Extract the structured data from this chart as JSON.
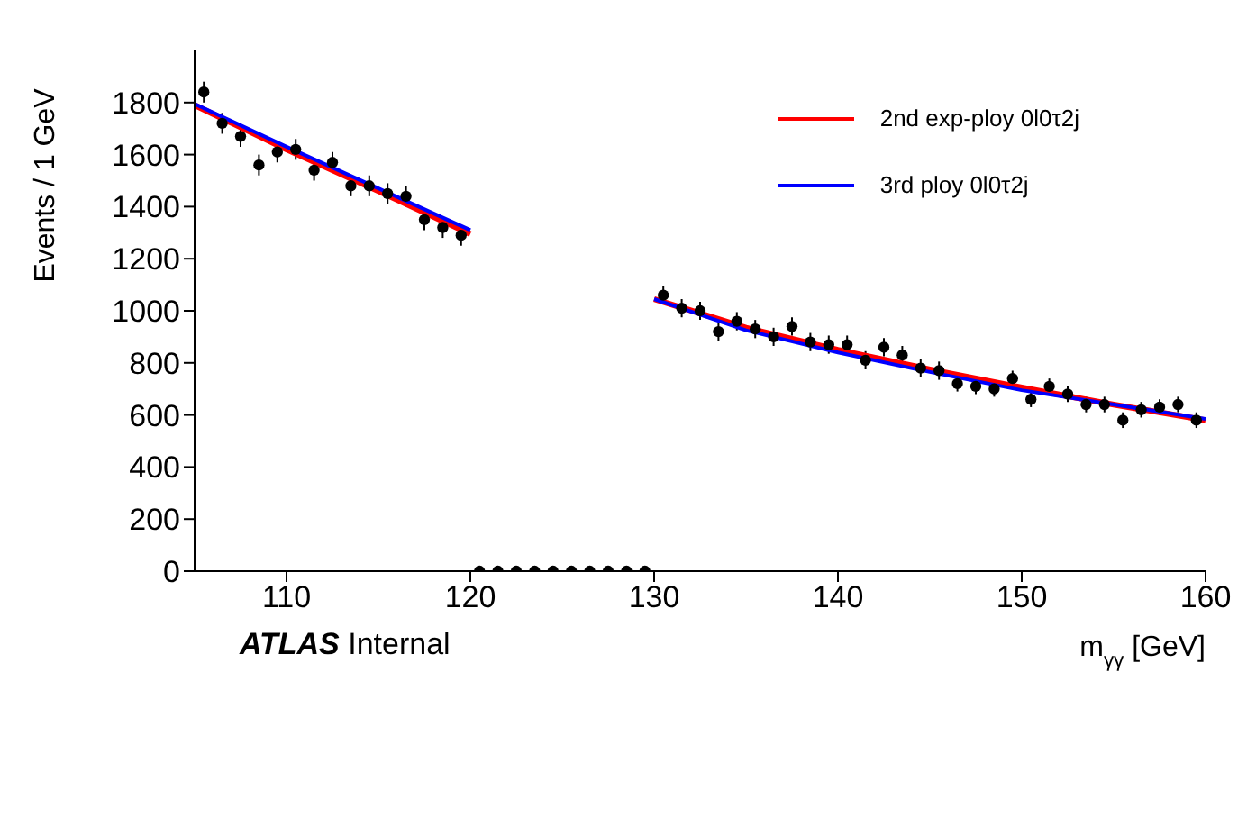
{
  "chart_data": {
    "type": "scatter",
    "xlabel": "m$_{γγ}$ [GeV]",
    "ylabel": "Events / 1 GeV",
    "xlim": [
      105,
      160
    ],
    "xticks": [
      110,
      120,
      130,
      140,
      150,
      160
    ],
    "ylim": [
      0,
      2000
    ],
    "yticks": [
      0,
      200,
      400,
      600,
      800,
      1000,
      1200,
      1400,
      1600,
      1800
    ],
    "grid": false,
    "legend": "top right",
    "annotations": [
      "ATLAS Internal"
    ],
    "series": [
      {
        "color": "#000000",
        "marker": "circle",
        "x": [
          105.5,
          106.5,
          107.5,
          108.5,
          109.5,
          110.5,
          111.5,
          112.5,
          113.5,
          114.5,
          115.5,
          116.5,
          117.5,
          118.5,
          119.5,
          120.5,
          121.5,
          122.5,
          123.5,
          124.5,
          125.5,
          126.5,
          127.5,
          128.5,
          129.5,
          130.5,
          131.5,
          132.5,
          133.5,
          134.5,
          135.5,
          136.5,
          137.5,
          138.5,
          139.5,
          140.5,
          141.5,
          142.5,
          143.5,
          144.5,
          145.5,
          146.5,
          147.5,
          148.5,
          149.5,
          150.5,
          151.5,
          152.5,
          153.5,
          154.5,
          155.5,
          156.5,
          157.5,
          158.5,
          159.5
        ],
        "values": [
          1840,
          1720,
          1670,
          1560,
          1610,
          1620,
          1540,
          1570,
          1480,
          1480,
          1450,
          1440,
          1350,
          1320,
          1290,
          0,
          0,
          0,
          0,
          0,
          0,
          0,
          0,
          0,
          0,
          1060,
          1010,
          1000,
          920,
          960,
          930,
          900,
          940,
          880,
          870,
          870,
          810,
          860,
          830,
          780,
          770,
          720,
          710,
          700,
          740,
          660,
          710,
          680,
          640,
          640,
          580,
          620,
          630,
          640,
          580
        ],
        "errors": [
          40,
          40,
          40,
          40,
          40,
          40,
          40,
          40,
          40,
          40,
          40,
          40,
          40,
          40,
          40,
          null,
          null,
          null,
          null,
          null,
          null,
          null,
          null,
          null,
          null,
          35,
          35,
          35,
          35,
          35,
          35,
          35,
          35,
          35,
          35,
          35,
          35,
          35,
          35,
          35,
          35,
          30,
          30,
          30,
          30,
          30,
          30,
          30,
          30,
          30,
          30,
          30,
          30,
          30,
          30
        ]
      },
      {
        "type": "line",
        "name": "2nd exp-ploy 0l0τ2j",
        "color": "#ff0000",
        "marker": "none",
        "line_style": "solid",
        "x": [
          105,
          110,
          115,
          120,
          125,
          130,
          135,
          140,
          145,
          150,
          155,
          160
        ],
        "values": [
          1790,
          1620,
          1460,
          1295,
          null,
          1045,
          935,
          850,
          775,
          705,
          640,
          580
        ]
      },
      {
        "type": "line",
        "name": "3rd ploy 0l0τ2j",
        "color": "#0000ff",
        "marker": "none",
        "line_style": "solid",
        "x": [
          105,
          110,
          115,
          120,
          125,
          130,
          135,
          140,
          145,
          150,
          155,
          160
        ],
        "values": [
          1795,
          1630,
          1470,
          1310,
          null,
          1045,
          925,
          840,
          765,
          695,
          640,
          585
        ]
      }
    ]
  }
}
